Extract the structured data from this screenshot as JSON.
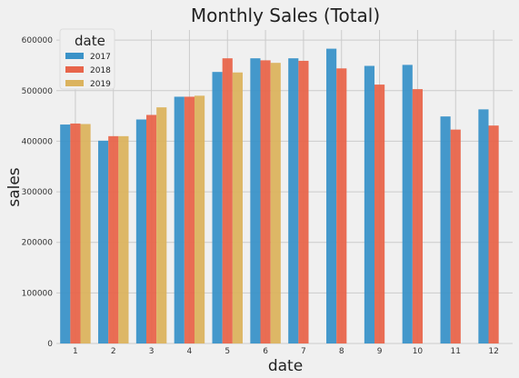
{
  "chart_data": {
    "type": "bar",
    "title": "Monthly Sales (Total)",
    "xlabel": "date",
    "ylabel": "sales",
    "categories": [
      "1",
      "2",
      "3",
      "4",
      "5",
      "6",
      "7",
      "8",
      "9",
      "10",
      "11",
      "12"
    ],
    "ylim": [
      0,
      620000
    ],
    "yticks": [
      0,
      100000,
      200000,
      300000,
      400000,
      500000,
      600000
    ],
    "ytick_labels": [
      "0",
      "100000",
      "200000",
      "300000",
      "400000",
      "500000",
      "600000"
    ],
    "grid": true,
    "legend": {
      "title": "date",
      "placement": "top-left"
    },
    "series": [
      {
        "name": "2017",
        "color": "#3a92c8",
        "values": [
          433000,
          401000,
          443000,
          488000,
          537000,
          564000,
          564000,
          583000,
          549000,
          551000,
          449000,
          463000
        ]
      },
      {
        "name": "2018",
        "color": "#e8654b",
        "values": [
          435000,
          410000,
          452000,
          488000,
          564000,
          560000,
          559000,
          544000,
          512000,
          503000,
          423000,
          431000
        ]
      },
      {
        "name": "2019",
        "color": "#dbb35e",
        "values": [
          434000,
          410000,
          467000,
          490000,
          536000,
          555000,
          null,
          null,
          null,
          null,
          null,
          null
        ]
      }
    ]
  }
}
